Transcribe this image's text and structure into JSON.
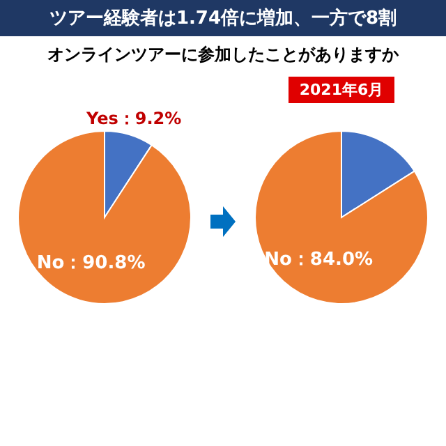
{
  "chart_data": [
    {
      "type": "pie",
      "title": "ツアー経験者は1.74倍に増加、一方で8割",
      "subtitle": "オンラインツアーに参加したことがありますか",
      "categories": [
        "Yes",
        "No"
      ],
      "values": [
        9.2,
        90.8
      ],
      "colors": [
        "#4472c4",
        "#ed7d31"
      ],
      "value_labels": [
        "：9.2%",
        "：90.8%"
      ]
    },
    {
      "type": "pie",
      "title": "2021年6月",
      "categories": [
        null,
        "No"
      ],
      "values": [
        16.0,
        84.0
      ],
      "colors": [
        "#4472c4",
        "#ed7d31"
      ],
      "value_labels": [
        null,
        "：84.0%"
      ]
    }
  ]
}
